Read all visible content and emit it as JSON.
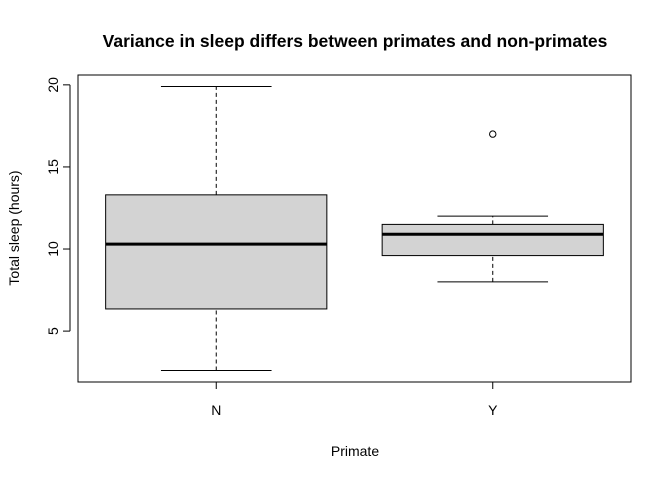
{
  "chart_data": {
    "type": "boxplot",
    "title": "Variance in sleep differs between primates and non-primates",
    "xlabel": "Primate",
    "ylabel": "Total sleep (hours)",
    "categories": [
      "N",
      "Y"
    ],
    "ylim": [
      1.9,
      20.6
    ],
    "yticks": [
      5,
      10,
      15,
      20
    ],
    "grid": false,
    "boxes": [
      {
        "category": "N",
        "whisker_low": 2.6,
        "q1": 6.35,
        "median": 10.3,
        "q3": 13.3,
        "whisker_high": 19.9,
        "outliers": []
      },
      {
        "category": "Y",
        "whisker_low": 8.0,
        "q1": 9.6,
        "median": 10.9,
        "q3": 11.5,
        "whisker_high": 12.0,
        "outliers": [
          17.0
        ]
      }
    ],
    "colors": {
      "box_fill": "#d3d3d3",
      "stroke": "#000000"
    }
  }
}
